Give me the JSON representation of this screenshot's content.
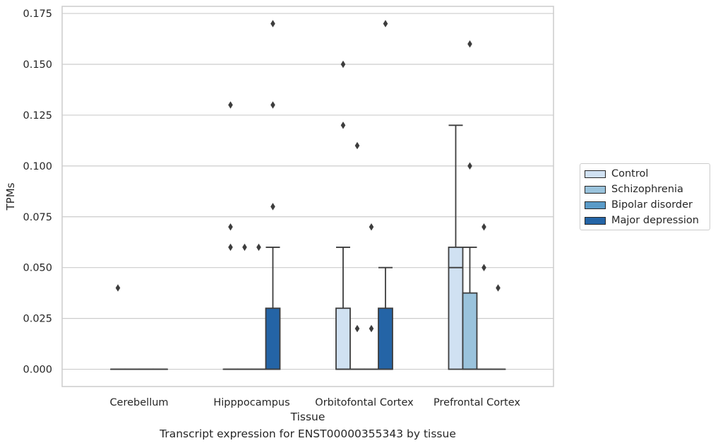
{
  "chart_data": {
    "type": "boxplot",
    "caption": "Transcript expression for ENST00000355343 by tissue",
    "xlabel": "Tissue",
    "ylabel": "TPMs",
    "ylim": [
      -0.0085,
      0.1785
    ],
    "yticks": [
      "0.000",
      "0.025",
      "0.050",
      "0.075",
      "0.100",
      "0.125",
      "0.150",
      "0.175"
    ],
    "yticks_values": [
      0,
      0.025,
      0.05,
      0.075,
      0.1,
      0.125,
      0.15,
      0.175
    ],
    "grid": "horizontal",
    "legend_position": "right",
    "categories": [
      "Cerebellum",
      "Hipppocampus",
      "Orbitofontal Cortex",
      "Prefrontal Cortex"
    ],
    "series": [
      {
        "name": "Control",
        "color": "#d0e1f2",
        "boxes": [
          {
            "q1": 0,
            "median": 0,
            "q3": 0,
            "whislo": 0,
            "whishi": 0,
            "fliers": []
          },
          {
            "q1": 0,
            "median": 0,
            "q3": 0,
            "whislo": 0,
            "whishi": 0,
            "fliers": [
              0.13,
              0.07,
              0.06
            ]
          },
          {
            "q1": 0,
            "median": 0,
            "q3": 0.03,
            "whislo": 0,
            "whishi": 0.06,
            "fliers": [
              0.15,
              0.12
            ]
          },
          {
            "q1": 0,
            "median": 0.05,
            "q3": 0.06,
            "whislo": 0,
            "whishi": 0.12,
            "fliers": []
          }
        ]
      },
      {
        "name": "Schizophrenia",
        "color": "#9ac3dc",
        "boxes": [
          {
            "q1": 0,
            "median": 0,
            "q3": 0,
            "whislo": 0,
            "whishi": 0,
            "fliers": []
          },
          {
            "q1": 0,
            "median": 0,
            "q3": 0,
            "whislo": 0,
            "whishi": 0,
            "fliers": [
              0.06
            ]
          },
          {
            "q1": 0,
            "median": 0,
            "q3": 0,
            "whislo": 0,
            "whishi": 0,
            "fliers": [
              0.11,
              0.02
            ]
          },
          {
            "q1": 0,
            "median": 0,
            "q3": 0.0375,
            "whislo": 0,
            "whishi": 0.06,
            "fliers": [
              0.16,
              0.1
            ]
          }
        ]
      },
      {
        "name": "Bipolar disorder",
        "color": "#5a9bc8",
        "boxes": [
          {
            "q1": 0,
            "median": 0,
            "q3": 0,
            "whislo": 0,
            "whishi": 0,
            "fliers": []
          },
          {
            "q1": 0,
            "median": 0,
            "q3": 0,
            "whislo": 0,
            "whishi": 0,
            "fliers": [
              0.06
            ]
          },
          {
            "q1": 0,
            "median": 0,
            "q3": 0,
            "whislo": 0,
            "whishi": 0,
            "fliers": [
              0.07,
              0.02
            ]
          },
          {
            "q1": 0,
            "median": 0,
            "q3": 0,
            "whislo": 0,
            "whishi": 0,
            "fliers": [
              0.07,
              0.05
            ]
          }
        ]
      },
      {
        "name": "Major depression",
        "color": "#2464a6",
        "boxes": [
          {
            "q1": 0,
            "median": 0,
            "q3": 0,
            "whislo": 0,
            "whishi": 0,
            "fliers": []
          },
          {
            "q1": 0,
            "median": 0,
            "q3": 0.03,
            "whislo": 0,
            "whishi": 0.06,
            "fliers": [
              0.17,
              0.13,
              0.08
            ]
          },
          {
            "q1": 0,
            "median": 0,
            "q3": 0.03,
            "whislo": 0,
            "whishi": 0.05,
            "fliers": [
              0.17
            ]
          },
          {
            "q1": 0,
            "median": 0,
            "q3": 0,
            "whislo": 0,
            "whishi": 0,
            "fliers": [
              0.04
            ]
          }
        ]
      }
    ],
    "extra_fliers": [
      {
        "category": "Cerebellum",
        "value": 0.04
      }
    ]
  }
}
